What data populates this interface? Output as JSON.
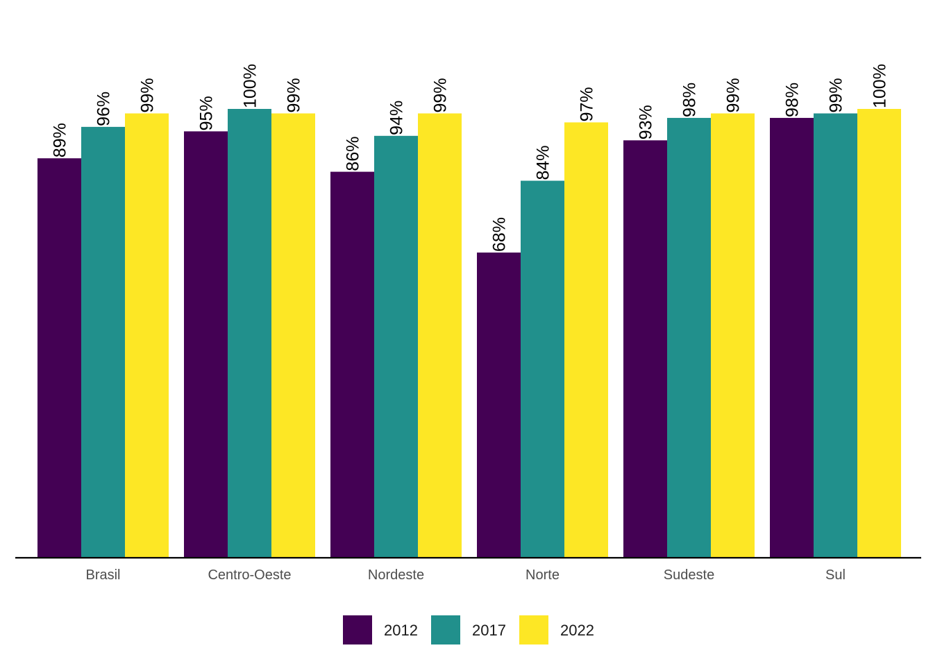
{
  "chart_data": {
    "type": "bar",
    "categories": [
      "Brasil",
      "Centro-Oeste",
      "Nordeste",
      "Norte",
      "Sudeste",
      "Sul"
    ],
    "series": [
      {
        "name": "2012",
        "color": "#440154",
        "values": [
          89,
          95,
          86,
          68,
          93,
          98
        ]
      },
      {
        "name": "2017",
        "color": "#21908C",
        "values": [
          96,
          100,
          94,
          84,
          98,
          99
        ]
      },
      {
        "name": "2022",
        "color": "#FDE725",
        "values": [
          99,
          99,
          99,
          97,
          99,
          100
        ]
      }
    ],
    "value_suffix": "%",
    "ylim": [
      0,
      100
    ],
    "grid": false,
    "legend_position": "bottom",
    "data_labels": "rotated-vertical"
  }
}
